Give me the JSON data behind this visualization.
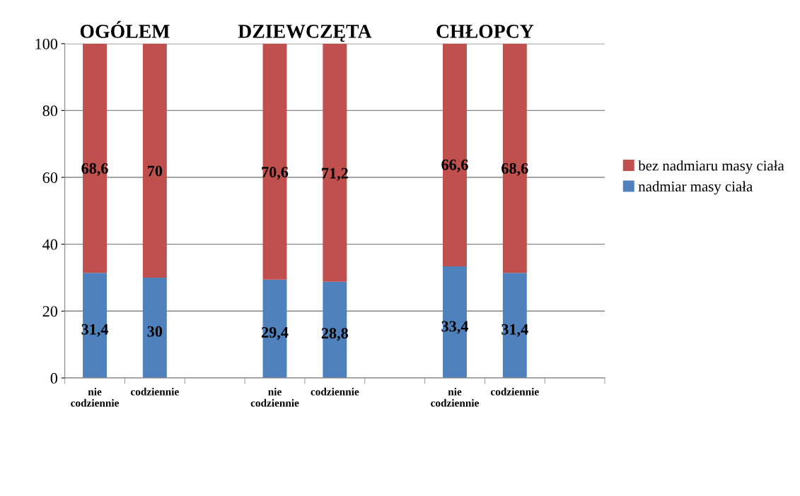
{
  "chart_data": {
    "type": "bar",
    "stacked": true,
    "categories": [
      "nie\ncodziennie",
      "codziennie",
      null,
      "nie\ncodziennie",
      "codziennie",
      null,
      "nie\ncodziennie",
      "codziennie",
      null
    ],
    "series": [
      {
        "name": "nadmiar masy ciała",
        "color": "#4f81bd",
        "values": [
          31.4,
          30,
          null,
          29.4,
          28.8,
          null,
          33.4,
          31.4,
          null
        ],
        "value_labels": [
          "31,4",
          "30",
          null,
          "29,4",
          "28,8",
          null,
          "33,4",
          "31,4",
          null
        ]
      },
      {
        "name": "bez nadmiaru masy ciała",
        "color": "#c0504d",
        "values": [
          68.6,
          70,
          null,
          70.6,
          71.2,
          null,
          66.6,
          68.6,
          null
        ],
        "value_labels": [
          "68,6",
          "70",
          null,
          "70,6",
          "71,2",
          null,
          "66,6",
          "68,6",
          null
        ]
      }
    ],
    "annotations": [
      "OGÓLEM",
      "DZIEWCZĘTA",
      "CHŁOPCY"
    ],
    "ylim": [
      0,
      100
    ],
    "yticks": [
      0,
      20,
      40,
      60,
      80,
      100
    ],
    "grid": "y",
    "legend": "right"
  }
}
